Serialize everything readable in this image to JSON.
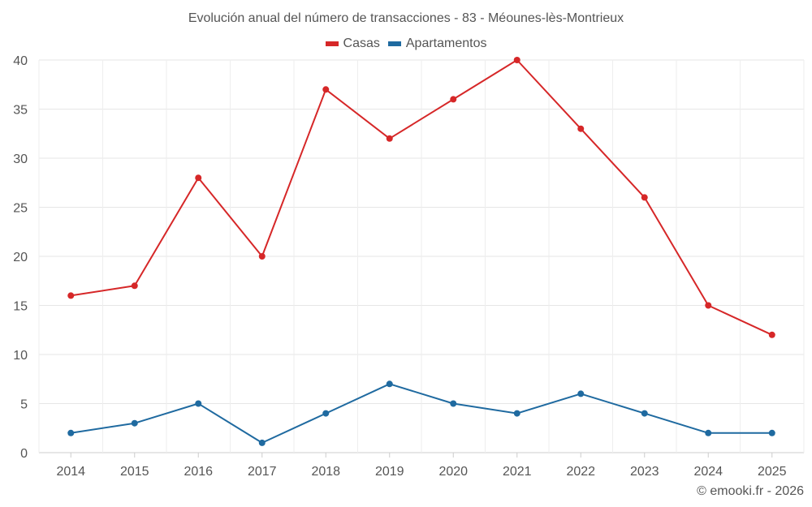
{
  "chart_data": {
    "type": "line",
    "title": "Evolución anual del número de transacciones - 83 - Méounes-lès-Montrieux",
    "xlabel": "",
    "ylabel": "",
    "categories": [
      "2014",
      "2015",
      "2016",
      "2017",
      "2018",
      "2019",
      "2020",
      "2021",
      "2022",
      "2023",
      "2024",
      "2025"
    ],
    "series": [
      {
        "name": "Casas",
        "color": "#d62728",
        "values": [
          16,
          17,
          28,
          20,
          37,
          32,
          36,
          40,
          33,
          26,
          15,
          12
        ]
      },
      {
        "name": "Apartamentos",
        "color": "#1f6aa0",
        "values": [
          2,
          3,
          5,
          1,
          4,
          7,
          5,
          4,
          6,
          4,
          2,
          2
        ]
      }
    ],
    "ylim": [
      0,
      40
    ],
    "yticks": [
      0,
      5,
      10,
      15,
      20,
      25,
      30,
      35,
      40
    ],
    "grid": true,
    "legend_position": "top-center"
  },
  "credit": "© emooki.fr - 2026"
}
